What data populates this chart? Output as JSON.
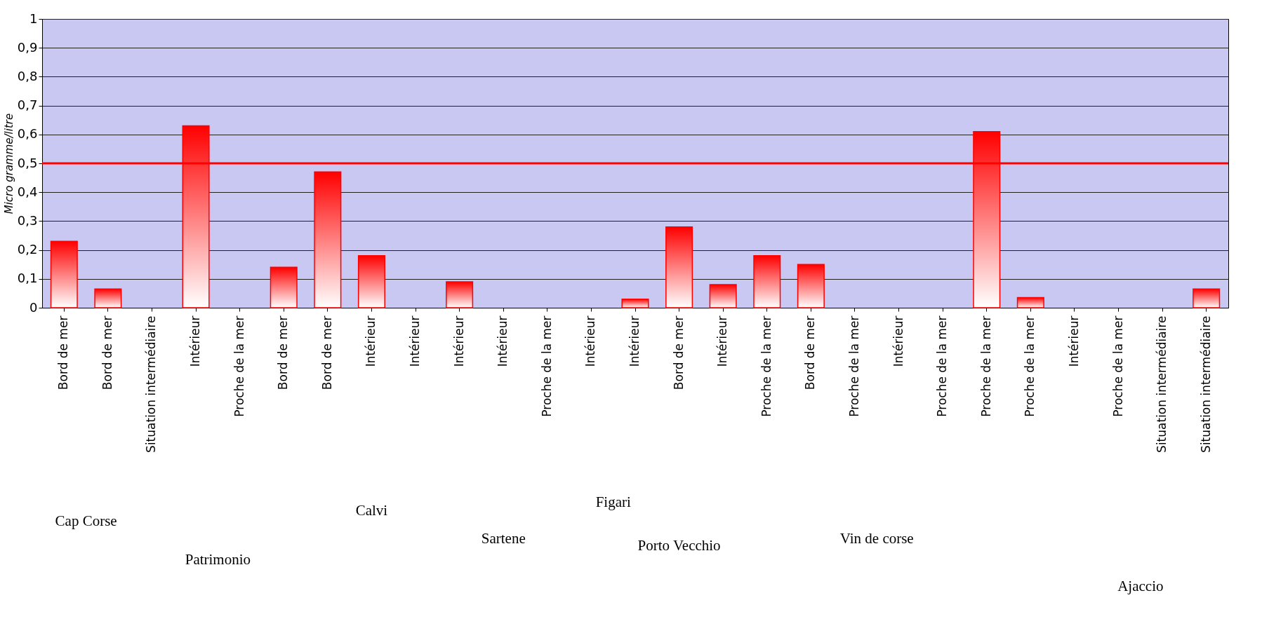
{
  "chart_data": {
    "type": "bar",
    "ylabel": "Micro gramme/litre",
    "categories": [
      "Bord de mer",
      "Bord de mer",
      "Situation intermédiaire",
      "Intérieur",
      "Proche de la mer",
      "Bord de mer",
      "Bord de mer",
      "Intérieur",
      "Intérieur",
      "Intérieur",
      "Intérieur",
      "Proche de la mer",
      "Intérieur",
      "Intérieur",
      "Bord de mer",
      "Intérieur",
      "Proche de la mer",
      "Bord de mer",
      "Proche de la mer",
      "Intérieur",
      "Proche de la mer",
      "Proche de la mer",
      "Proche de la mer",
      "Intérieur",
      "Proche de la mer",
      "Situation intermédiaire",
      "Situation intermédiaire"
    ],
    "values": [
      0.23,
      0.065,
      null,
      0.63,
      null,
      0.14,
      0.47,
      0.18,
      null,
      0.09,
      null,
      null,
      null,
      0.03,
      0.28,
      0.08,
      0.18,
      0.15,
      null,
      null,
      null,
      0.61,
      0.035,
      null,
      null,
      null,
      0.065
    ],
    "color": "#ff0000",
    "ylim": [
      0,
      1
    ],
    "yticks": [
      0,
      {
        "value": 0.1,
        "label": "0,1"
      },
      {
        "value": 0.2,
        "label": "0,2"
      },
      {
        "value": 0.3,
        "label": "0,3"
      },
      {
        "value": 0.4,
        "label": "0,4"
      },
      {
        "value": 0.5,
        "label": "0,5"
      },
      {
        "value": 0.6,
        "label": "0,6"
      },
      {
        "value": 0.7,
        "label": "0,7"
      },
      {
        "value": 0.8,
        "label": "0,8"
      },
      {
        "value": 0.9,
        "label": "0,9"
      },
      1
    ],
    "grid": "y",
    "ref_lines": [
      {
        "axis": "y",
        "value": 0.5,
        "color": "#ff0000"
      }
    ],
    "annotations": [
      "Cap Corse",
      "Patrimonio",
      "Calvi",
      "Sartene",
      "Figari",
      "Porto Vecchio",
      "Vin de corse",
      "Ajaccio"
    ]
  }
}
